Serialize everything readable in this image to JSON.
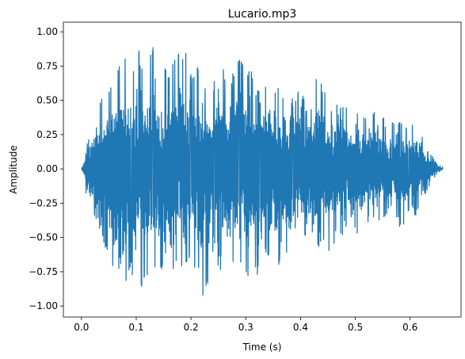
{
  "chart_data": {
    "type": "line",
    "title": "Lucario.mp3",
    "xlabel": "Time (s)",
    "ylabel": "Amplitude",
    "xlim": [
      -0.033,
      0.693
    ],
    "ylim": [
      -1.08,
      1.07
    ],
    "xticks": [
      0.0,
      0.1,
      0.2,
      0.3,
      0.4,
      0.5,
      0.6
    ],
    "xtick_labels": [
      "0.0",
      "0.1",
      "0.2",
      "0.3",
      "0.4",
      "0.5",
      "0.6"
    ],
    "yticks": [
      -1.0,
      -0.75,
      -0.5,
      -0.25,
      0.0,
      0.25,
      0.5,
      0.75,
      1.0
    ],
    "ytick_labels": [
      "−1.00",
      "−0.75",
      "−0.50",
      "−0.25",
      "0.00",
      "0.25",
      "0.50",
      "0.75",
      "1.00"
    ],
    "grid": false,
    "series": [
      {
        "color": "#1f77b4",
        "duration": 0.66,
        "x": [
          0.0,
          0.005,
          0.01,
          0.02,
          0.03,
          0.04,
          0.05,
          0.06,
          0.07,
          0.08,
          0.09,
          0.1,
          0.11,
          0.12,
          0.13,
          0.14,
          0.15,
          0.16,
          0.17,
          0.18,
          0.19,
          0.2,
          0.21,
          0.22,
          0.23,
          0.24,
          0.25,
          0.26,
          0.27,
          0.28,
          0.29,
          0.3,
          0.31,
          0.32,
          0.33,
          0.34,
          0.35,
          0.36,
          0.37,
          0.38,
          0.39,
          0.4,
          0.41,
          0.42,
          0.43,
          0.44,
          0.45,
          0.46,
          0.47,
          0.48,
          0.49,
          0.5,
          0.51,
          0.52,
          0.53,
          0.54,
          0.55,
          0.56,
          0.57,
          0.58,
          0.59,
          0.6,
          0.61,
          0.62,
          0.63,
          0.64,
          0.65,
          0.66
        ],
        "y_max": [
          0.0,
          0.05,
          0.28,
          0.3,
          0.47,
          0.55,
          0.6,
          0.74,
          0.75,
          0.84,
          0.68,
          0.88,
          0.85,
          0.7,
          0.92,
          0.82,
          0.74,
          0.76,
          0.81,
          0.97,
          0.88,
          0.7,
          0.74,
          0.77,
          0.58,
          0.66,
          0.66,
          0.75,
          0.6,
          0.75,
          0.9,
          0.7,
          0.72,
          0.6,
          0.52,
          0.78,
          0.62,
          0.6,
          0.58,
          0.55,
          0.49,
          0.64,
          0.45,
          0.5,
          0.77,
          0.65,
          0.45,
          0.5,
          0.53,
          0.49,
          0.45,
          0.36,
          0.47,
          0.38,
          0.42,
          0.44,
          0.4,
          0.27,
          0.36,
          0.35,
          0.33,
          0.36,
          0.3,
          0.28,
          0.15,
          0.1,
          0.03,
          0.02
        ],
        "y_min": [
          0.0,
          -0.08,
          -0.24,
          -0.36,
          -0.39,
          -0.53,
          -0.72,
          -0.8,
          -0.98,
          -0.9,
          -0.78,
          -0.86,
          -0.88,
          -0.79,
          -0.82,
          -0.7,
          -0.78,
          -0.84,
          -0.8,
          -0.74,
          -0.72,
          -0.63,
          -0.76,
          -0.95,
          -0.88,
          -0.82,
          -0.75,
          -0.72,
          -0.77,
          -0.67,
          -0.68,
          -0.84,
          -0.71,
          -0.83,
          -0.7,
          -0.65,
          -0.76,
          -0.72,
          -0.52,
          -0.8,
          -0.63,
          -0.49,
          -0.55,
          -0.52,
          -0.63,
          -0.53,
          -0.68,
          -0.56,
          -0.48,
          -0.52,
          -0.38,
          -0.45,
          -0.52,
          -0.4,
          -0.37,
          -0.42,
          -0.37,
          -0.32,
          -0.28,
          -0.43,
          -0.46,
          -0.25,
          -0.35,
          -0.22,
          -0.18,
          -0.1,
          -0.03,
          0.0
        ]
      }
    ]
  }
}
